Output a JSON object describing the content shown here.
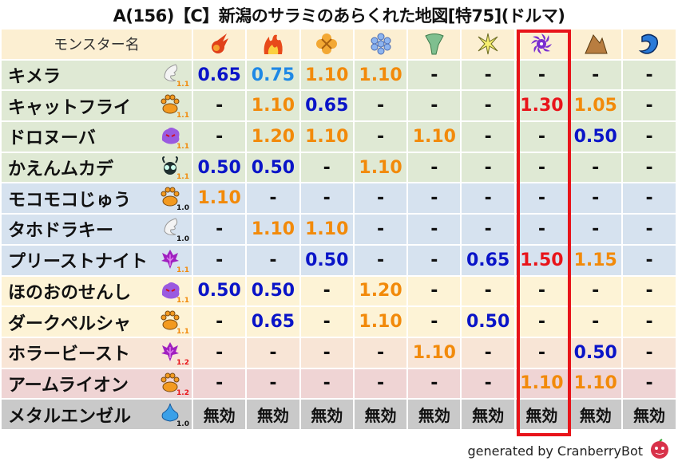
{
  "title": "A(156)【C】新潟のサラミのあらくれた地図[特75](ドルマ)",
  "header": {
    "name_label": "モンスター名",
    "elements": [
      "fire-icon",
      "flame-icon",
      "explosion-icon",
      "ice-icon",
      "wind-icon",
      "light-icon",
      "dark-icon",
      "earth-icon",
      "water-icon"
    ]
  },
  "highlight_column": "dark-icon",
  "colors": {
    "very_resist": "#0a14c8",
    "resist": "#1e88e5",
    "weak": "#f28a0a",
    "very_weak": "#e8141a",
    "highlight": "#e8141a",
    "ver_1_0": "#111111",
    "ver_1_1": "#f28a0a",
    "ver_1_2": "#e8141a"
  },
  "rows": [
    {
      "name": "キメラ",
      "icon": "wing-icon",
      "ver": "1.1",
      "bg": "#dfe9d4",
      "values": [
        "0.65",
        "0.75",
        "1.10",
        "1.10",
        "-",
        "-",
        "-",
        "-",
        "-"
      ]
    },
    {
      "name": "キャットフライ",
      "icon": "paw-icon",
      "ver": "1.1",
      "bg": "#dfe9d4",
      "values": [
        "-",
        "1.10",
        "0.65",
        "-",
        "-",
        "-",
        "1.30",
        "1.05",
        "-"
      ]
    },
    {
      "name": "ドロヌーバ",
      "icon": "slime-ghost-icon",
      "ver": "1.1",
      "bg": "#dfe9d4",
      "values": [
        "-",
        "1.20",
        "1.10",
        "-",
        "1.10",
        "-",
        "-",
        "0.50",
        "-"
      ]
    },
    {
      "name": "かえんムカデ",
      "icon": "bug-icon",
      "ver": "1.1",
      "bg": "#dfe9d4",
      "values": [
        "0.50",
        "0.50",
        "-",
        "1.10",
        "-",
        "-",
        "-",
        "-",
        "-"
      ]
    },
    {
      "name": "モコモコじゅう",
      "icon": "paw-icon",
      "ver": "1.0",
      "bg": "#d6e2ef",
      "values": [
        "1.10",
        "-",
        "-",
        "-",
        "-",
        "-",
        "-",
        "-",
        "-"
      ]
    },
    {
      "name": "タホドラキー",
      "icon": "wing-icon",
      "ver": "1.0",
      "bg": "#d6e2ef",
      "values": [
        "-",
        "1.10",
        "1.10",
        "-",
        "-",
        "-",
        "-",
        "-",
        "-"
      ]
    },
    {
      "name": "プリーストナイト",
      "icon": "demon-icon",
      "ver": "1.1",
      "bg": "#d6e2ef",
      "values": [
        "-",
        "-",
        "0.50",
        "-",
        "-",
        "0.65",
        "1.50",
        "1.15",
        "-"
      ]
    },
    {
      "name": "ほのおのせんし",
      "icon": "slime-ghost-icon",
      "ver": "1.1",
      "bg": "#fdf3d6",
      "values": [
        "0.50",
        "0.50",
        "-",
        "1.20",
        "-",
        "-",
        "-",
        "-",
        "-"
      ]
    },
    {
      "name": "ダークペルシャ",
      "icon": "paw-icon",
      "ver": "1.1",
      "bg": "#fdf3d6",
      "values": [
        "-",
        "0.65",
        "-",
        "1.10",
        "-",
        "0.50",
        "-",
        "-",
        "-"
      ]
    },
    {
      "name": "ホラービースト",
      "icon": "demon-icon",
      "ver": "1.2",
      "bg": "#f8e5d6",
      "values": [
        "-",
        "-",
        "-",
        "-",
        "1.10",
        "-",
        "-",
        "0.50",
        "-"
      ]
    },
    {
      "name": "アームライオン",
      "icon": "paw-icon",
      "ver": "1.2",
      "bg": "#efd4d4",
      "values": [
        "-",
        "-",
        "-",
        "-",
        "-",
        "-",
        "1.10",
        "1.10",
        "-"
      ]
    },
    {
      "name": "メタルエンゼル",
      "icon": "slime-icon",
      "ver": "1.0",
      "bg": "#c9c9c9",
      "values": [
        "無効",
        "無効",
        "無効",
        "無効",
        "無効",
        "無効",
        "無効",
        "無効",
        "無効"
      ]
    }
  ],
  "footer": "generated by CranberryBot"
}
